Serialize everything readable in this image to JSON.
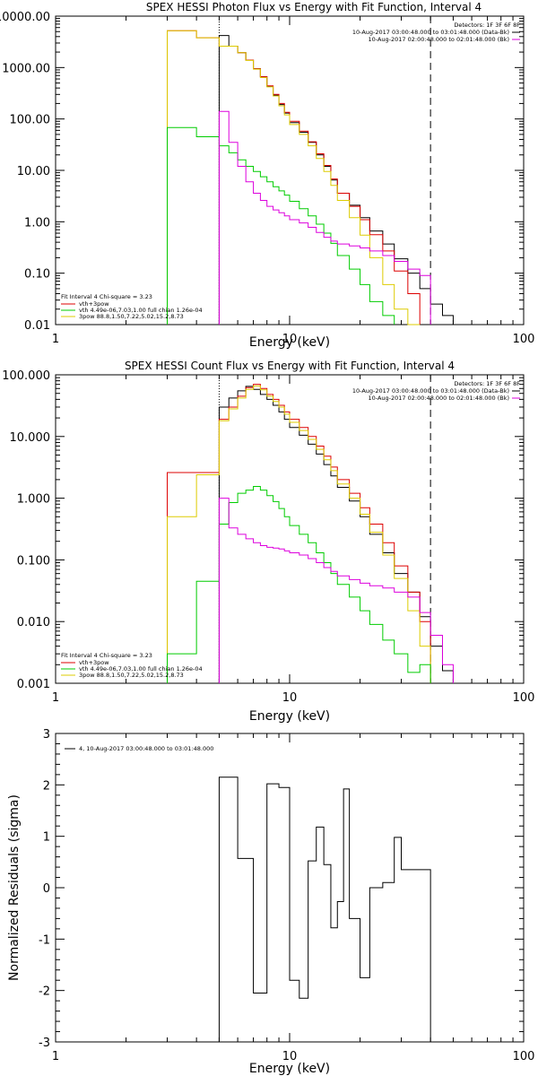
{
  "chart_data": [
    {
      "type": "line",
      "title": "SPEX HESSI Photon Flux vs Energy with Fit Function, Interval 4",
      "xlabel": "Energy (keV)",
      "ylabel": "",
      "xscale": "log",
      "yscale": "log",
      "xlim": [
        1,
        100
      ],
      "ylim": [
        0.01,
        10000
      ],
      "x_ticks": [
        "1",
        "10",
        "100"
      ],
      "y_ticks": [
        "0.01",
        "0.10",
        "1.00",
        "10.00",
        "100.00",
        "1000.00",
        "10000.00"
      ],
      "vlines_keV": [
        5.0,
        40.0
      ],
      "info_top": {
        "detectors": "Detectors: 1F 3F 6F 8F",
        "line1": "10-Aug-2017 03:00:48.000 to 03:01:48.000 (Data-Bk)",
        "line2": "10-Aug-2017 02:00:48.000 to 02:01:48.000 (Bk)"
      },
      "fit_info": {
        "header": "Fit Interval 4   Chi-square = 3.23",
        "line1": "vth+3pow",
        "line2": "vth 4.49e-06,7.03,1.00  full chian 1.26e-04",
        "line3": "3pow 88.8,1.50,7.22,5.02,15.2,8.73"
      },
      "edges": [
        3,
        4,
        5,
        5.5,
        6,
        6.5,
        7,
        7.5,
        8,
        8.5,
        9,
        9.5,
        10,
        11,
        12,
        13,
        14,
        15,
        16,
        18,
        20,
        22,
        25,
        28,
        32,
        36,
        40,
        45,
        50
      ],
      "series": [
        {
          "color": "#000000",
          "start": 2,
          "values": [
            4200,
            2600,
            1950,
            1400,
            950,
            660,
            430,
            290,
            190,
            130,
            85,
            55,
            35,
            20,
            12,
            6.5,
            3.6,
            2.1,
            1.2,
            0.66,
            0.37,
            0.19,
            0.1,
            0.05,
            0.025,
            0.015
          ]
        },
        {
          "color": "#dd0000",
          "start": 0,
          "values": [
            5200,
            3800,
            2600,
            2600,
            1950,
            1400,
            950,
            660,
            440,
            300,
            200,
            135,
            90,
            58,
            36,
            21,
            12.5,
            6.8,
            3.6,
            2.0,
            1.1,
            0.56,
            0.27,
            0.11,
            0.04
          ]
        },
        {
          "color": "#ddcc00",
          "start": 0,
          "values": [
            5200,
            3800,
            2600,
            2600,
            1950,
            1380,
            930,
            640,
            420,
            280,
            180,
            120,
            78,
            50,
            30,
            17,
            9.5,
            5.1,
            2.6,
            1.2,
            0.55,
            0.2,
            0.06,
            0.02,
            0.01
          ]
        },
        {
          "color": "#00cc00",
          "start": 0,
          "values": [
            68,
            45,
            30,
            22,
            16,
            12,
            9.5,
            7.5,
            6,
            4.8,
            4,
            3.3,
            2.5,
            1.8,
            1.3,
            0.9,
            0.6,
            0.38,
            0.22,
            0.12,
            0.06,
            0.028,
            0.015
          ]
        },
        {
          "color": "#dd00dd",
          "start": 2,
          "values": [
            140,
            35,
            12,
            6,
            3.6,
            2.6,
            2.0,
            1.7,
            1.5,
            1.3,
            1.1,
            0.95,
            0.78,
            0.62,
            0.5,
            0.42,
            0.37,
            0.34,
            0.31,
            0.27,
            0.22,
            0.17,
            0.12,
            0.09
          ]
        }
      ]
    },
    {
      "type": "line",
      "title": "SPEX HESSI Count Flux vs Energy with Fit Function, Interval 4",
      "xlabel": "Energy (keV)",
      "ylabel": "",
      "xscale": "log",
      "yscale": "log",
      "xlim": [
        1,
        100
      ],
      "ylim": [
        0.001,
        100
      ],
      "x_ticks": [
        "1",
        "10",
        "100"
      ],
      "y_ticks": [
        "0.001",
        "0.010",
        "0.100",
        "1.000",
        "10.000",
        "100.000"
      ],
      "vlines_keV": [
        5.0,
        40.0
      ],
      "info_top": {
        "detectors": "Detectors: 1F 3F 6F 8F",
        "line1": "10-Aug-2017 03:00:48.000 to 03:01:48.000 (Data-Bk)",
        "line2": "10-Aug-2017 02:00:48.000 to 02:01:48.000 (Bk)"
      },
      "fit_info": {
        "header": "Fit Interval 4   Chi-square = 3.23",
        "line1": "vth+3pow",
        "line2": "vth 4.49e-06,7.03,1.00  full chian 1.26e-04",
        "line3": "3pow 88.8,1.50,7.22,5.02,15.2,8.73"
      },
      "edges": [
        3,
        4,
        5,
        5.5,
        6,
        6.5,
        7,
        7.5,
        8,
        8.5,
        9,
        9.5,
        10,
        11,
        12,
        13,
        14,
        15,
        16,
        18,
        20,
        22,
        25,
        28,
        32,
        36,
        40,
        45,
        50
      ],
      "series": [
        {
          "color": "#000000",
          "start": 2,
          "values": [
            30,
            42,
            55,
            65,
            58,
            48,
            40,
            32,
            25,
            19,
            14,
            10.5,
            7.5,
            5.2,
            3.5,
            2.3,
            1.5,
            0.9,
            0.5,
            0.26,
            0.13,
            0.06,
            0.03,
            0.012,
            0.004,
            0.0016
          ]
        },
        {
          "color": "#dd0000",
          "start": 0,
          "values": [
            2.6,
            2.6,
            19,
            30,
            45,
            62,
            70,
            60,
            48,
            40,
            32,
            25,
            19,
            14,
            10,
            7,
            4.8,
            3.2,
            2.0,
            1.2,
            0.7,
            0.38,
            0.19,
            0.08,
            0.03,
            0.01
          ]
        },
        {
          "color": "#ddcc00",
          "start": 0,
          "values": [
            0.5,
            2.4,
            18,
            28,
            42,
            58,
            66,
            57,
            45,
            37,
            30,
            23,
            17,
            12.5,
            9,
            6.2,
            4.2,
            2.8,
            1.7,
            1.0,
            0.55,
            0.28,
            0.12,
            0.05,
            0.015,
            0.004
          ]
        },
        {
          "color": "#00cc00",
          "start": 0,
          "values": [
            0.003,
            0.045,
            0.38,
            0.85,
            1.2,
            1.35,
            1.55,
            1.35,
            1.1,
            0.88,
            0.68,
            0.5,
            0.36,
            0.26,
            0.19,
            0.13,
            0.09,
            0.06,
            0.04,
            0.025,
            0.015,
            0.009,
            0.005,
            0.003,
            0.0015,
            0.002
          ]
        },
        {
          "color": "#dd00dd",
          "start": 2,
          "values": [
            1.0,
            0.33,
            0.26,
            0.22,
            0.19,
            0.17,
            0.16,
            0.155,
            0.15,
            0.14,
            0.13,
            0.12,
            0.105,
            0.09,
            0.075,
            0.065,
            0.055,
            0.048,
            0.042,
            0.038,
            0.035,
            0.03,
            0.025,
            0.014,
            0.006,
            0.002
          ]
        }
      ]
    },
    {
      "type": "line",
      "title": "",
      "xlabel": "Energy (keV)",
      "ylabel": "Normalized Residuals (sigma)",
      "xscale": "log",
      "yscale": "linear",
      "xlim": [
        1,
        100
      ],
      "ylim": [
        -3,
        3
      ],
      "x_ticks": [
        "1",
        "10",
        "100"
      ],
      "y_ticks": [
        "-3",
        "-2",
        "-1",
        "0",
        "1",
        "2",
        "3"
      ],
      "legend": "4, 10-Aug-2017 03:00:48.000 to 03:01:48.000",
      "edges": [
        5,
        6,
        7,
        8,
        9,
        10,
        11,
        12,
        13,
        14,
        15,
        16,
        17,
        18,
        20,
        22,
        25,
        28,
        30,
        32,
        35,
        38,
        40
      ],
      "values": [
        2.15,
        0.57,
        -2.05,
        2.02,
        1.95,
        -1.8,
        -2.15,
        0.52,
        1.18,
        0.45,
        -0.78,
        -0.27,
        1.92,
        -0.6,
        -1.75,
        0.0,
        0.1,
        0.98,
        0.35,
        0.35,
        0.35,
        0.35
      ]
    }
  ]
}
